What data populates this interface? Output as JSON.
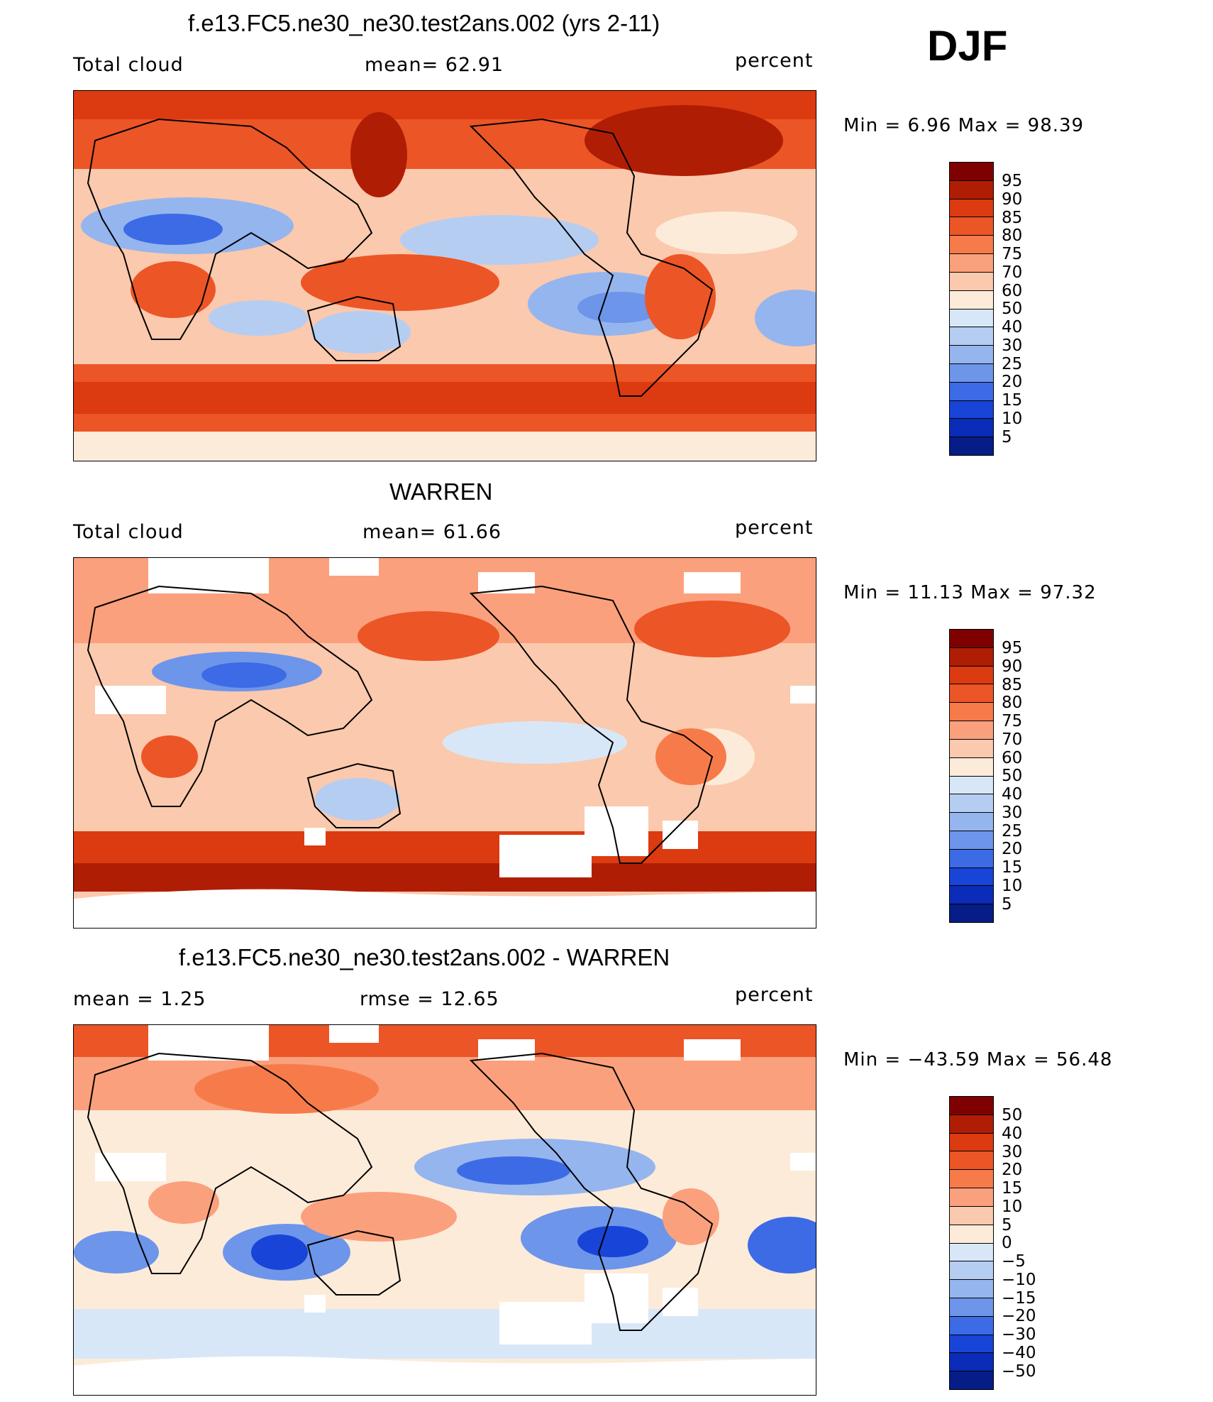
{
  "season": "DJF",
  "panels": [
    {
      "title": "f.e13.FC5.ne30_ne30.test2ans.002 (yrs 2-11)",
      "left_label": "Total cloud",
      "center_label": "mean=   62.91",
      "right_label": "percent",
      "stats": "Min =    6.96 Max =   98.39",
      "colorbar_labels": [
        "95",
        "90",
        "85",
        "80",
        "75",
        "70",
        "60",
        "50",
        "40",
        "30",
        "25",
        "20",
        "15",
        "10",
        "5"
      ]
    },
    {
      "title": "WARREN",
      "left_label": "Total cloud",
      "center_label": "mean=   61.66",
      "right_label": "percent",
      "stats": "Min =   11.13 Max =   97.32",
      "colorbar_labels": [
        "95",
        "90",
        "85",
        "80",
        "75",
        "70",
        "60",
        "50",
        "40",
        "30",
        "25",
        "20",
        "15",
        "10",
        "5"
      ]
    },
    {
      "title": "f.e13.FC5.ne30_ne30.test2ans.002 - WARREN",
      "left_label": "mean =     1.25",
      "center_label": "rmse =   12.65",
      "right_label": "percent",
      "stats": "Min = −43.59 Max =   56.48",
      "colorbar_labels": [
        "50",
        "40",
        "30",
        "20",
        "15",
        "10",
        "5",
        "0",
        "−5",
        "−10",
        "−15",
        "−20",
        "−30",
        "−40",
        "−50"
      ]
    }
  ],
  "colors": {
    "abs_scale": [
      "#7f0000",
      "#b01d05",
      "#dc3a10",
      "#ec5526",
      "#f77b4a",
      "#fba07d",
      "#fbc9ad",
      "#fdebd9",
      "#d8e7f7",
      "#b6cdf2",
      "#95b5ef",
      "#6d95ea",
      "#3d6be6",
      "#1844d8",
      "#0a2cb8",
      "#061c86"
    ],
    "diff_scale": [
      "#7f0000",
      "#b01d05",
      "#dc3a10",
      "#ec5526",
      "#f77b4a",
      "#fba07d",
      "#fbc9ad",
      "#fdebd9",
      "#d8e7f7",
      "#b6cdf2",
      "#95b5ef",
      "#6d95ea",
      "#3d6be6",
      "#1844d8",
      "#0a2cb8",
      "#061c86"
    ],
    "missing": "#ffffff",
    "coastline": "#000000"
  }
}
